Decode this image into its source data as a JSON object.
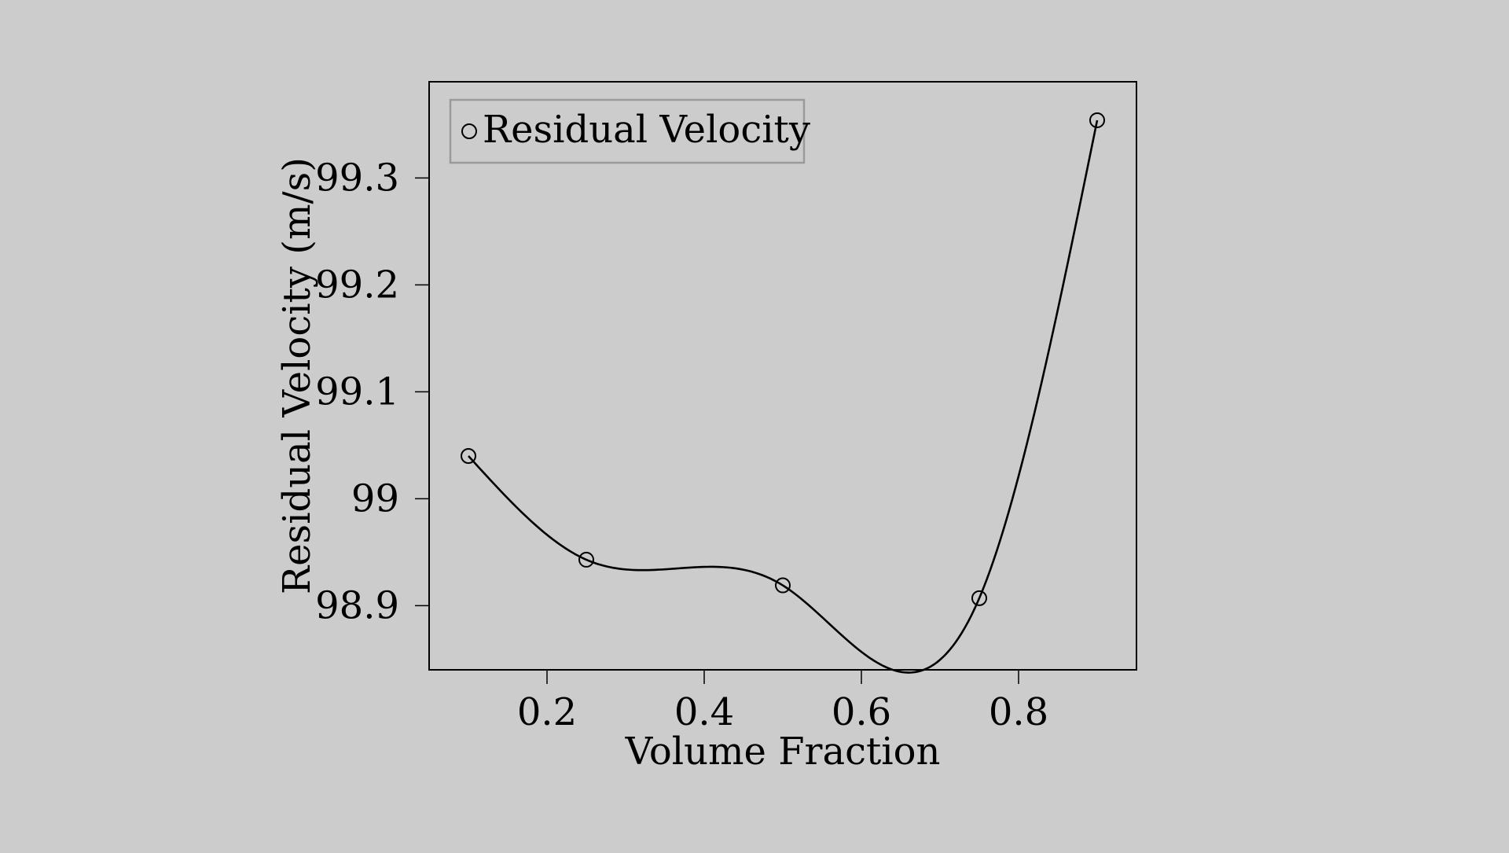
{
  "chart_data": {
    "type": "scatter",
    "title": "",
    "xlabel": "Volume Fraction",
    "ylabel": "Residual Velocity (m/s)",
    "xlim": [
      0.05,
      0.95
    ],
    "ylim": [
      98.84,
      99.39
    ],
    "xticks": [
      0.2,
      0.4,
      0.6,
      0.8
    ],
    "xtick_labels": [
      "0.2",
      "0.4",
      "0.6",
      "0.8"
    ],
    "yticks": [
      98.9,
      99.0,
      99.1,
      99.2,
      99.3
    ],
    "ytick_labels": [
      "98.9",
      "99",
      "99.1",
      "99.2",
      "99.3"
    ],
    "grid": false,
    "legend_position": "top-left",
    "series": [
      {
        "name": "Residual Velocity",
        "marker": "circle-open",
        "x": [
          0.1,
          0.25,
          0.5,
          0.75,
          0.9
        ],
        "y": [
          99.04,
          98.943,
          98.919,
          98.907,
          99.354
        ],
        "curve": "smooth-interpolation",
        "color": "#000000"
      }
    ]
  }
}
